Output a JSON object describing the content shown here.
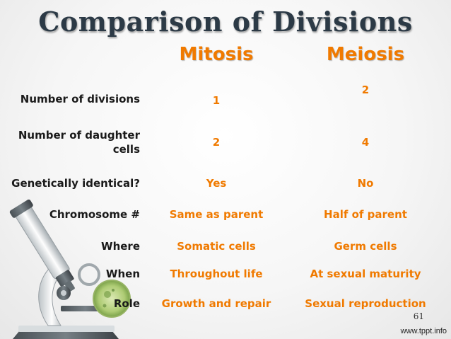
{
  "title": "Comparison of Divisions",
  "columns": {
    "mitosis": "Mitosis",
    "meiosis": "Meiosis"
  },
  "rows": [
    {
      "label": "Number of divisions",
      "mitosis": "1",
      "meiosis": "2"
    },
    {
      "label": "Number of daughter\ncells",
      "mitosis": "2",
      "meiosis": "4"
    },
    {
      "label": "Genetically identical?",
      "mitosis": "Yes",
      "meiosis": "No"
    },
    {
      "label": "Chromosome #",
      "mitosis": "Same as parent",
      "meiosis": "Half of parent"
    },
    {
      "label": "Where",
      "mitosis": "Somatic cells",
      "meiosis": "Germ cells"
    },
    {
      "label": "When",
      "mitosis": "Throughout life",
      "meiosis": "At sexual maturity"
    },
    {
      "label": "Role",
      "mitosis": "Growth and repair",
      "meiosis": "Sexual reproduction"
    }
  ],
  "slide_number": "61",
  "watermark": "www.tppt.info",
  "colors": {
    "title": "#2c3a46",
    "accent": "#f07a00",
    "label": "#1a1a1a"
  },
  "icons": {
    "decoration": "microscope-icon"
  }
}
